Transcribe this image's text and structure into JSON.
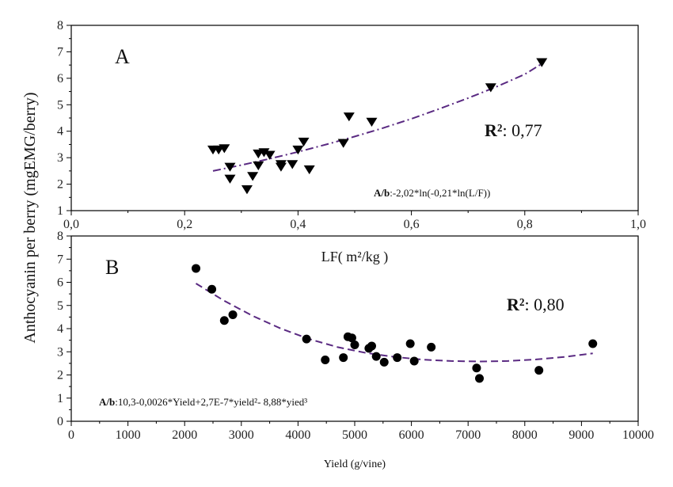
{
  "chart_data": [
    {
      "panel": "A",
      "type": "scatter",
      "xlabel": "LF( m²/kg )",
      "ylabel": "Anthocyanin per berry (mgEMG/berry)",
      "xlim": [
        0.0,
        1.0
      ],
      "ylim": [
        1,
        8
      ],
      "x_ticks": [
        "0,0",
        "0,2",
        "0,4",
        "0,6",
        "0,8",
        "1,0"
      ],
      "y_ticks": [
        "1",
        "2",
        "3",
        "4",
        "5",
        "6",
        "7",
        "8"
      ],
      "marker": "triangle-down",
      "color": "#000000",
      "fit_color": "#5a2a82",
      "fit_style": "dash-dot",
      "r2_label": "R²",
      "r2_value": ": 0,77",
      "equation_label": "A/b",
      "equation": ":-2,02*ln(-0,21*ln(L/F))",
      "points": [
        [
          0.25,
          3.3
        ],
        [
          0.26,
          3.3
        ],
        [
          0.27,
          3.35
        ],
        [
          0.28,
          2.65
        ],
        [
          0.28,
          2.2
        ],
        [
          0.31,
          1.8
        ],
        [
          0.32,
          2.3
        ],
        [
          0.33,
          2.7
        ],
        [
          0.33,
          3.15
        ],
        [
          0.34,
          3.2
        ],
        [
          0.35,
          3.1
        ],
        [
          0.37,
          2.65
        ],
        [
          0.37,
          2.75
        ],
        [
          0.39,
          2.75
        ],
        [
          0.4,
          3.3
        ],
        [
          0.41,
          3.6
        ],
        [
          0.42,
          2.55
        ],
        [
          0.48,
          3.55
        ],
        [
          0.49,
          4.55
        ],
        [
          0.53,
          4.35
        ],
        [
          0.74,
          5.65
        ],
        [
          0.83,
          6.6
        ]
      ],
      "fit": {
        "x": [
          0.25,
          0.3,
          0.35,
          0.4,
          0.45,
          0.5,
          0.55,
          0.6,
          0.65,
          0.7,
          0.75,
          0.8,
          0.83
        ],
        "y": [
          2.5,
          2.72,
          2.96,
          3.22,
          3.5,
          3.8,
          4.12,
          4.47,
          4.85,
          5.25,
          5.68,
          6.15,
          6.55
        ]
      }
    },
    {
      "panel": "B",
      "type": "scatter",
      "xlabel": "Yield (g/vine)",
      "xlim": [
        0,
        10000
      ],
      "ylim": [
        0,
        8
      ],
      "x_ticks": [
        "0",
        "1000",
        "2000",
        "3000",
        "4000",
        "5000",
        "6000",
        "7000",
        "8000",
        "9000",
        "10000"
      ],
      "y_ticks": [
        "0",
        "1",
        "2",
        "3",
        "4",
        "5",
        "6",
        "7",
        "8"
      ],
      "marker": "circle",
      "color": "#000000",
      "fit_color": "#5a2a82",
      "fit_style": "dashed",
      "r2_label": "R²",
      "r2_value": ": 0,80",
      "equation_label": "A/b",
      "equation": ":10,3-0,0026*Yield+2,7E-7*yield²- 8,88*yied³",
      "points": [
        [
          2200,
          6.6
        ],
        [
          2480,
          5.7
        ],
        [
          2700,
          4.35
        ],
        [
          2850,
          4.6
        ],
        [
          4150,
          3.55
        ],
        [
          4480,
          2.65
        ],
        [
          4800,
          2.75
        ],
        [
          4880,
          3.65
        ],
        [
          4950,
          3.6
        ],
        [
          5000,
          3.3
        ],
        [
          5250,
          3.15
        ],
        [
          5300,
          3.25
        ],
        [
          5380,
          2.8
        ],
        [
          5520,
          2.55
        ],
        [
          5750,
          2.75
        ],
        [
          5980,
          3.35
        ],
        [
          6050,
          2.6
        ],
        [
          6350,
          3.2
        ],
        [
          7150,
          2.3
        ],
        [
          7200,
          1.85
        ],
        [
          8250,
          2.2
        ],
        [
          9200,
          3.35
        ]
      ],
      "fit": {
        "x": [
          2200,
          2700,
          3200,
          3700,
          4200,
          4700,
          5200,
          5700,
          6200,
          6700,
          7200,
          7700,
          8200,
          8700,
          9200
        ],
        "y": [
          5.95,
          5.2,
          4.55,
          4.0,
          3.55,
          3.2,
          2.95,
          2.78,
          2.66,
          2.6,
          2.58,
          2.6,
          2.67,
          2.78,
          2.93
        ]
      }
    }
  ]
}
